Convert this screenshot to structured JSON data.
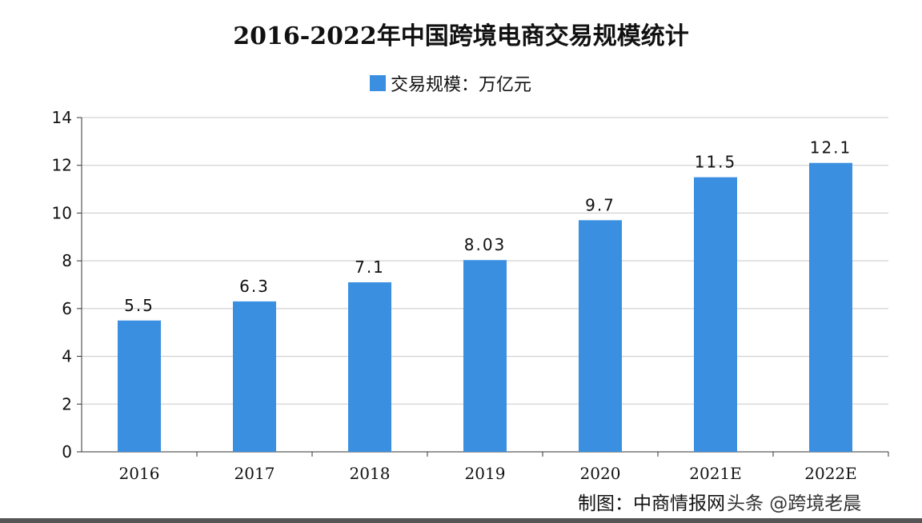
{
  "chart_data": {
    "type": "bar",
    "title": "2016-2022年中国跨境电商交易规模统计",
    "legend": "交易规模：万亿元",
    "legend_position": "top",
    "categories": [
      "2016",
      "2017",
      "2018",
      "2019",
      "2020",
      "2021E",
      "2022E"
    ],
    "values": [
      5.5,
      6.3,
      7.1,
      8.03,
      9.7,
      11.5,
      12.1
    ],
    "data_labels": [
      "5.5",
      "6.3",
      "7.1",
      "8.03",
      "9.7",
      "11.5",
      "12.1"
    ],
    "xlabel": "",
    "ylabel": "",
    "ylim": [
      0,
      14
    ],
    "yticks": [
      "0",
      "2",
      "4",
      "6",
      "8",
      "10",
      "12",
      "14"
    ],
    "grid": true,
    "bar_color": "#3a8fe0"
  },
  "footer": {
    "source": "制图：中商情报网",
    "watermark": "头条 @跨境老晨"
  }
}
